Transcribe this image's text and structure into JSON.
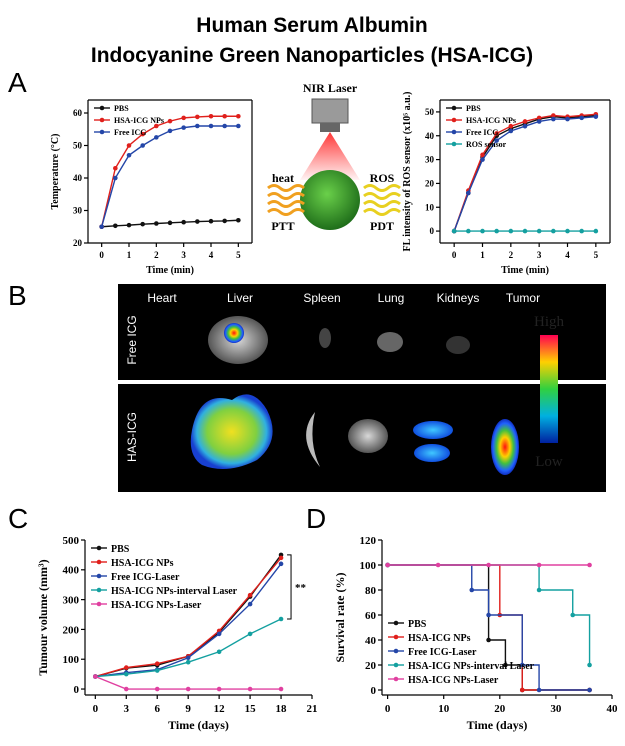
{
  "title_lines": [
    "Human Serum Albumin",
    "Indocyanine Green Nanoparticles (HSA-ICG)"
  ],
  "panel_labels": [
    "A",
    "B",
    "C",
    "D"
  ],
  "diagram": {
    "laser": "NIR Laser",
    "heat": "heat",
    "ptt": "PTT",
    "ros": "ROS",
    "pdt": "PDT"
  },
  "imaging": {
    "organs": [
      "Heart",
      "Liver",
      "Spleen",
      "Lung",
      "Kidneys",
      "Tumor"
    ],
    "rows": [
      "Free ICG",
      "HAS-ICG"
    ],
    "scale_high": "High",
    "scale_low": "Low"
  },
  "chart_data": [
    {
      "type": "line",
      "xlabel": "Time (min)",
      "ylabel": "Temperature (°C)",
      "x": [
        0,
        0.5,
        1,
        1.5,
        2,
        2.5,
        3,
        3.5,
        4,
        4.5,
        5
      ],
      "xlim": [
        -0.5,
        5.5
      ],
      "xticks": [
        0,
        1,
        2,
        3,
        4,
        5
      ],
      "ylim": [
        20,
        64
      ],
      "yticks": [
        20,
        30,
        40,
        50,
        60
      ],
      "legend": "upper left",
      "series": [
        {
          "name": "PBS",
          "color": "#111111",
          "values": [
            25,
            25.3,
            25.5,
            25.8,
            26,
            26.2,
            26.4,
            26.6,
            26.7,
            26.8,
            27
          ]
        },
        {
          "name": "HSA-ICG NPs",
          "color": "#e0201c",
          "values": [
            25,
            43,
            50,
            53.5,
            56,
            57.5,
            58.5,
            58.8,
            59,
            59,
            59
          ]
        },
        {
          "name": "Free ICG",
          "color": "#2446a8",
          "values": [
            25,
            40,
            47,
            50,
            52.5,
            54.5,
            55.5,
            56,
            56,
            56,
            56
          ]
        }
      ]
    },
    {
      "type": "line",
      "xlabel": "Time (min)",
      "ylabel": "FL intensity of ROS sensor (x10⁵ a.u.)",
      "x": [
        0,
        0.5,
        1,
        1.5,
        2,
        2.5,
        3,
        3.5,
        4,
        4.5,
        5
      ],
      "xlim": [
        -0.5,
        5.5
      ],
      "xticks": [
        0,
        1,
        2,
        3,
        4,
        5
      ],
      "ylim": [
        -5,
        55
      ],
      "yticks": [
        0,
        10,
        20,
        30,
        40,
        50
      ],
      "legend": "upper left",
      "series": [
        {
          "name": "PBS",
          "color": "#111111",
          "values": [
            0,
            16,
            31,
            40,
            43,
            45,
            47,
            48,
            47.5,
            48,
            48.5
          ]
        },
        {
          "name": "HSA-ICG NPs",
          "color": "#e0201c",
          "values": [
            0,
            17,
            32,
            41,
            44,
            46,
            47.5,
            48.5,
            48,
            48.5,
            49
          ]
        },
        {
          "name": "Free ICG",
          "color": "#2446a8",
          "values": [
            0,
            16,
            30,
            38,
            42,
            44,
            46,
            47,
            47,
            47.5,
            48
          ]
        },
        {
          "name": "ROS sensor",
          "color": "#14a0a0",
          "values": [
            0,
            0,
            0,
            0,
            0,
            0,
            0,
            0,
            0,
            0,
            0
          ]
        }
      ]
    },
    {
      "type": "line",
      "xlabel": "Time (days)",
      "ylabel": "Tumour volume (mm³)",
      "x": [
        0,
        3,
        6,
        9,
        12,
        15,
        18
      ],
      "xlim": [
        -1,
        21
      ],
      "xticks": [
        0,
        3,
        6,
        9,
        12,
        15,
        18,
        21
      ],
      "ylim": [
        -20,
        500
      ],
      "yticks": [
        0,
        100,
        200,
        300,
        400,
        500
      ],
      "legend": "upper left",
      "annotation": "**",
      "series": [
        {
          "name": "PBS",
          "color": "#111111",
          "values": [
            42,
            70,
            80,
            110,
            190,
            310,
            450
          ]
        },
        {
          "name": "HSA-ICG NPs",
          "color": "#e0201c",
          "values": [
            42,
            72,
            85,
            110,
            195,
            315,
            440
          ]
        },
        {
          "name": "Free ICG-Laser",
          "color": "#2446a8",
          "values": [
            42,
            55,
            65,
            105,
            185,
            285,
            420
          ]
        },
        {
          "name": "HSA-ICG NPs-interval Laser",
          "color": "#14a0a0",
          "values": [
            42,
            50,
            62,
            90,
            125,
            185,
            235
          ]
        },
        {
          "name": "HSA-ICG NPs-Laser",
          "color": "#e040a0",
          "values": [
            42,
            0,
            0,
            0,
            0,
            0,
            0
          ]
        }
      ]
    },
    {
      "type": "step",
      "xlabel": "Time (days)",
      "ylabel": "Survival rate (%)",
      "xlim": [
        -1,
        40
      ],
      "xticks": [
        0,
        10,
        20,
        30,
        40
      ],
      "ylim": [
        -4,
        120
      ],
      "yticks": [
        0,
        20,
        40,
        60,
        80,
        100,
        120
      ],
      "legend": "lower left",
      "series": [
        {
          "name": "PBS",
          "color": "#111111",
          "x": [
            0,
            18,
            21,
            24,
            36
          ],
          "values": [
            100,
            40,
            20,
            0,
            0
          ]
        },
        {
          "name": "HSA-ICG NPs",
          "color": "#e0201c",
          "x": [
            0,
            20,
            24,
            36
          ],
          "values": [
            100,
            60,
            0,
            0
          ]
        },
        {
          "name": "Free ICG-Laser",
          "color": "#2446a8",
          "x": [
            0,
            15,
            18,
            24,
            27,
            36
          ],
          "values": [
            100,
            80,
            60,
            20,
            0,
            0
          ]
        },
        {
          "name": "HSA-ICG NPs-interval Laser",
          "color": "#14a0a0",
          "x": [
            0,
            27,
            33,
            36
          ],
          "values": [
            100,
            80,
            60,
            20
          ]
        },
        {
          "name": "HSA-ICG NPs-Laser",
          "color": "#e040a0",
          "x": [
            0,
            9,
            18,
            27,
            36
          ],
          "values": [
            100,
            100,
            100,
            100,
            100
          ]
        }
      ]
    }
  ]
}
